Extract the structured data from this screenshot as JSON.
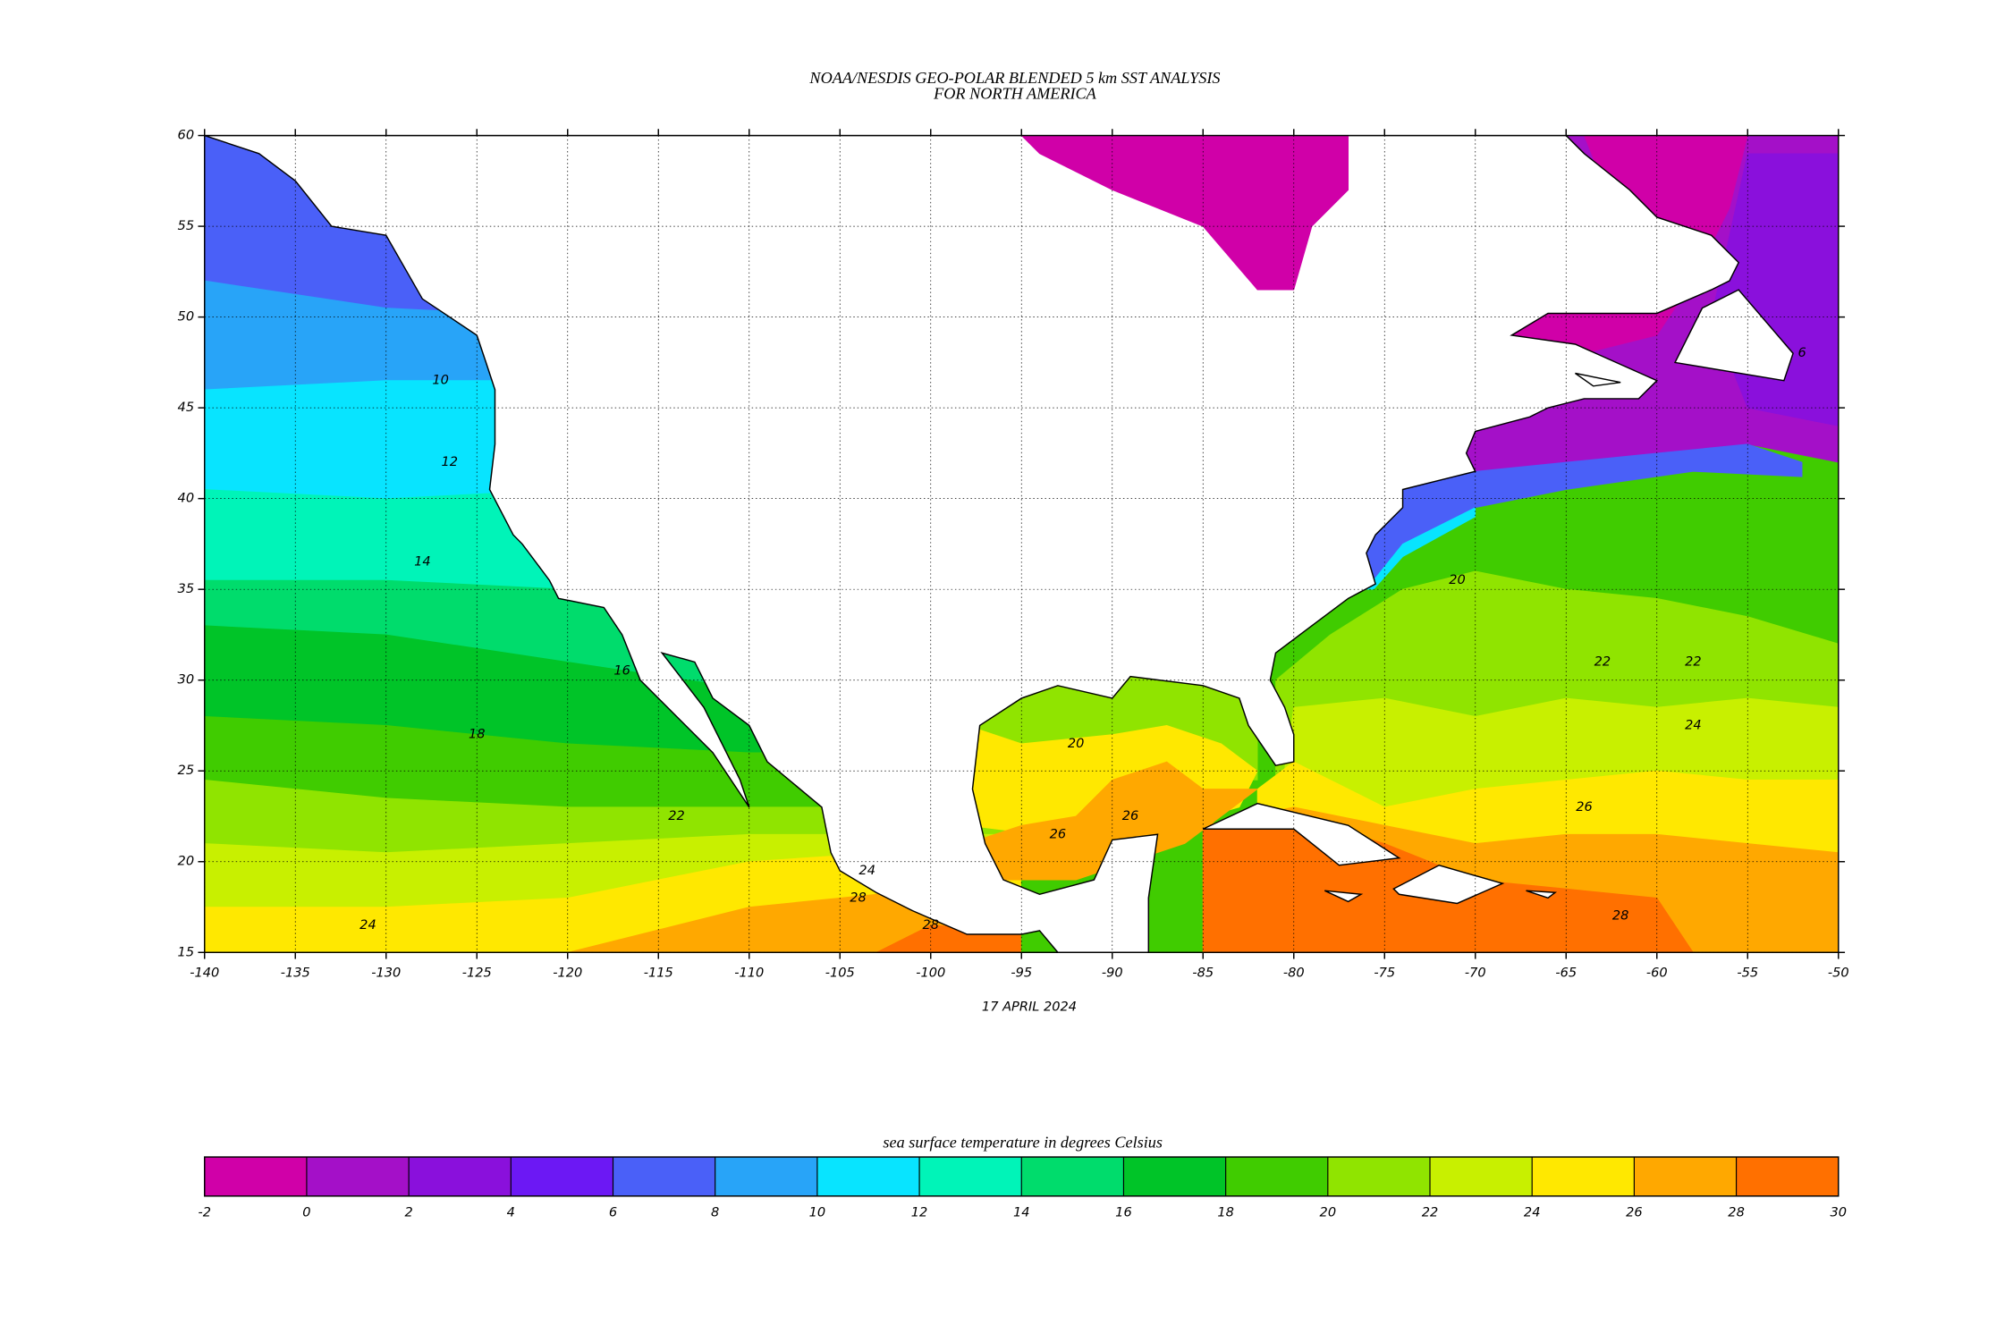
{
  "header": {
    "title_line1": "NOAA/NESDIS GEO-POLAR BLENDED 5 km SST ANALYSIS",
    "title_line2": "FOR NORTH AMERICA"
  },
  "map": {
    "xlim": [
      -140,
      -50
    ],
    "ylim": [
      15,
      60
    ],
    "xticks": [
      -140,
      -135,
      -130,
      -125,
      -120,
      -115,
      -110,
      -105,
      -100,
      -95,
      -90,
      -85,
      -80,
      -75,
      -70,
      -65,
      -60,
      -55,
      -50
    ],
    "yticks": [
      15,
      20,
      25,
      30,
      35,
      40,
      45,
      50,
      55,
      60
    ],
    "grid": true,
    "land_color": "#ffffff",
    "coast_color": "#000000",
    "date": "17 APRIL 2024",
    "contour_labels": [
      10,
      12,
      14,
      16,
      18,
      20,
      22,
      22,
      24,
      24,
      26,
      26,
      28,
      28,
      20,
      22,
      24,
      26,
      28,
      6
    ]
  },
  "colorbar": {
    "label": "sea surface temperature in degrees Celsius",
    "ticks": [
      -2,
      0,
      2,
      4,
      6,
      8,
      10,
      12,
      14,
      16,
      18,
      20,
      22,
      24,
      26,
      28,
      30
    ],
    "colors": [
      "#d000a8",
      "#a410c8",
      "#8a10dc",
      "#6c18f4",
      "#4a60f8",
      "#28a4f8",
      "#08e4ff",
      "#00f4b8",
      "#00dc6c",
      "#00c428",
      "#40cc00",
      "#90e400",
      "#c8f000",
      "#ffe800",
      "#ffa800",
      "#ff7000"
    ]
  }
}
